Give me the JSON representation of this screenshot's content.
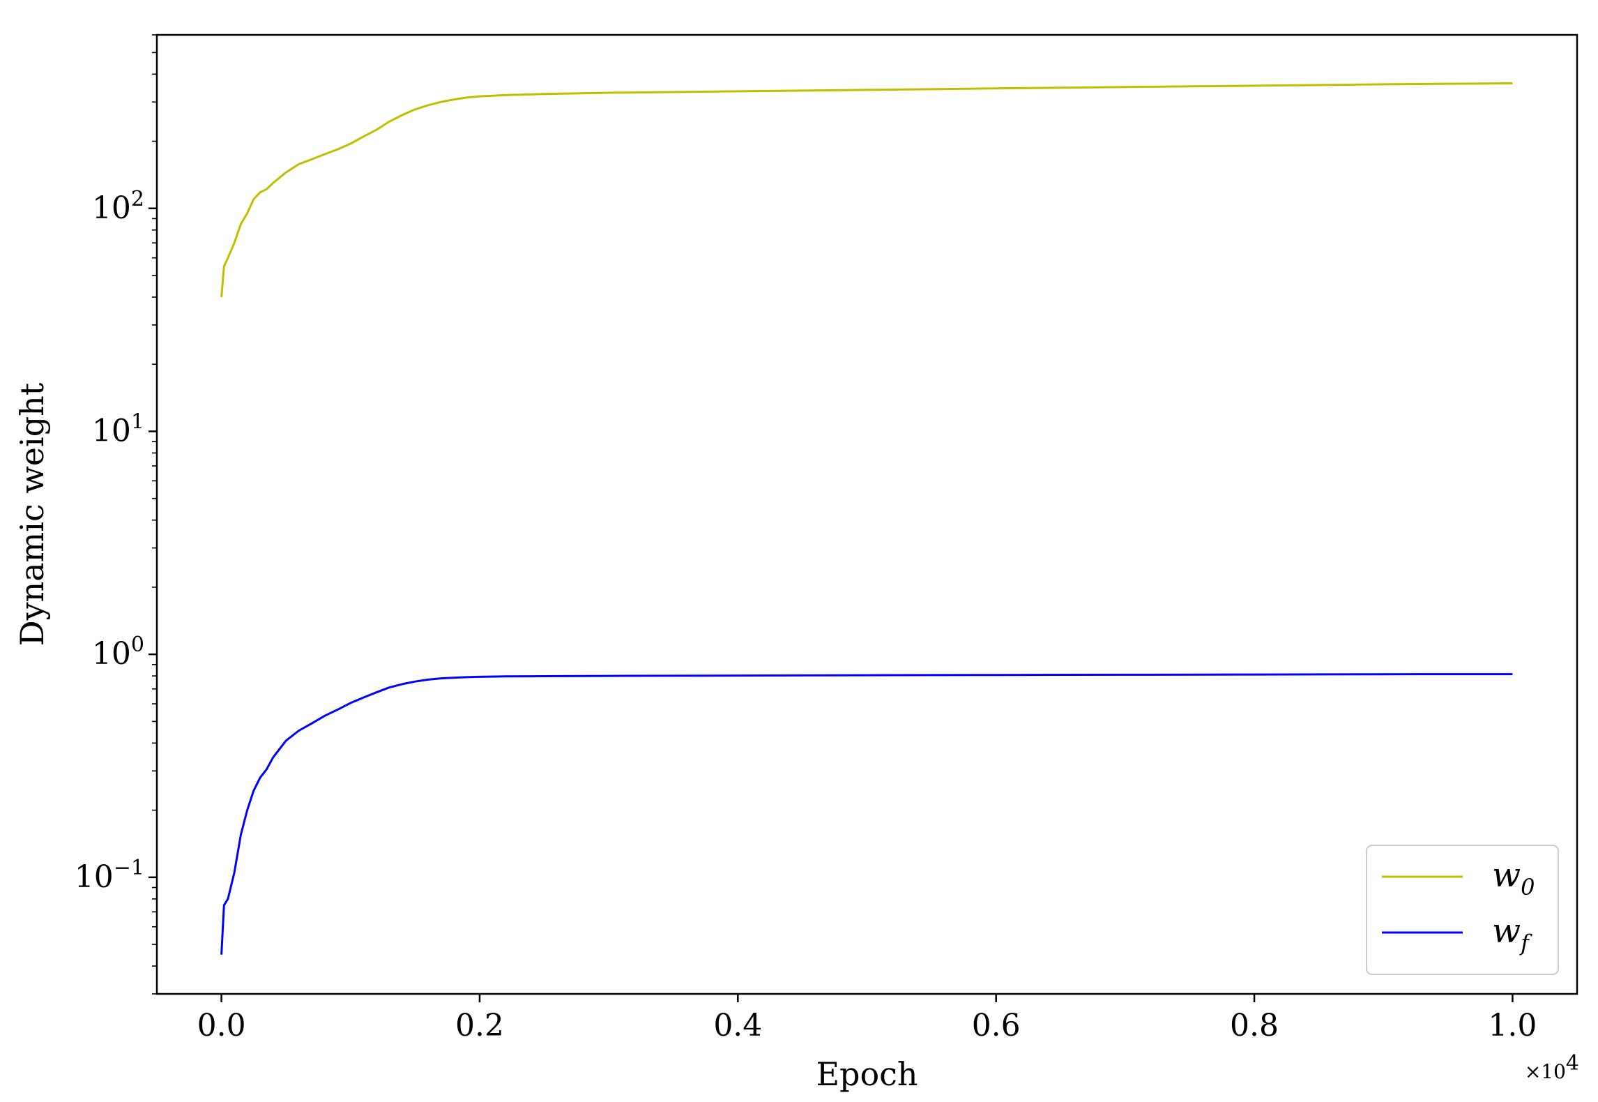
{
  "chart_data": {
    "type": "line",
    "title": "",
    "xlabel": "Epoch",
    "ylabel": "Dynamic weight",
    "x_offset_text": "×10",
    "x_offset_exponent": "4",
    "xlim": [
      -0.05,
      1.05
    ],
    "xticks": [
      0.0,
      0.2,
      0.4,
      0.6,
      0.8,
      1.0
    ],
    "xtick_labels": [
      "0.0",
      "0.2",
      "0.4",
      "0.6",
      "0.8",
      "1.0"
    ],
    "yscale": "log",
    "ylim": [
      0.03,
      600
    ],
    "yticks": [
      0.1,
      1,
      10,
      100
    ],
    "ytick_labels": [
      {
        "base": "10",
        "exp": "−1"
      },
      {
        "base": "10",
        "exp": "0"
      },
      {
        "base": "10",
        "exp": "1"
      },
      {
        "base": "10",
        "exp": "2"
      }
    ],
    "grid": false,
    "legend_position": "lower right",
    "series": [
      {
        "name": "w",
        "subscript": "0",
        "color": "#bfbf00",
        "x": [
          0.0,
          0.002,
          0.005,
          0.01,
          0.015,
          0.02,
          0.025,
          0.03,
          0.035,
          0.04,
          0.05,
          0.06,
          0.07,
          0.08,
          0.09,
          0.1,
          0.11,
          0.12,
          0.13,
          0.14,
          0.15,
          0.16,
          0.17,
          0.18,
          0.19,
          0.2,
          0.22,
          0.25,
          0.3,
          0.4,
          0.5,
          0.6,
          0.7,
          0.8,
          0.9,
          1.0
        ],
        "y": [
          40,
          55,
          60,
          70,
          85,
          95,
          110,
          118,
          122,
          130,
          145,
          158,
          166,
          175,
          184,
          195,
          210,
          225,
          245,
          262,
          278,
          290,
          300,
          308,
          314,
          318,
          322,
          326,
          330,
          335,
          340,
          345,
          350,
          355,
          360,
          364
        ]
      },
      {
        "name": "w",
        "subscript": "f",
        "color": "#0000ff",
        "x": [
          0.0,
          0.002,
          0.005,
          0.01,
          0.015,
          0.02,
          0.025,
          0.03,
          0.035,
          0.04,
          0.05,
          0.06,
          0.07,
          0.08,
          0.09,
          0.1,
          0.11,
          0.12,
          0.13,
          0.14,
          0.15,
          0.16,
          0.17,
          0.18,
          0.19,
          0.2,
          0.22,
          0.25,
          0.3,
          0.4,
          0.5,
          0.6,
          0.7,
          0.8,
          0.9,
          1.0
        ],
        "y": [
          0.045,
          0.075,
          0.08,
          0.105,
          0.155,
          0.2,
          0.245,
          0.28,
          0.305,
          0.345,
          0.41,
          0.455,
          0.49,
          0.53,
          0.565,
          0.605,
          0.64,
          0.675,
          0.71,
          0.735,
          0.755,
          0.77,
          0.78,
          0.786,
          0.79,
          0.793,
          0.796,
          0.798,
          0.8,
          0.803,
          0.806,
          0.808,
          0.81,
          0.812,
          0.814,
          0.815
        ]
      }
    ]
  }
}
